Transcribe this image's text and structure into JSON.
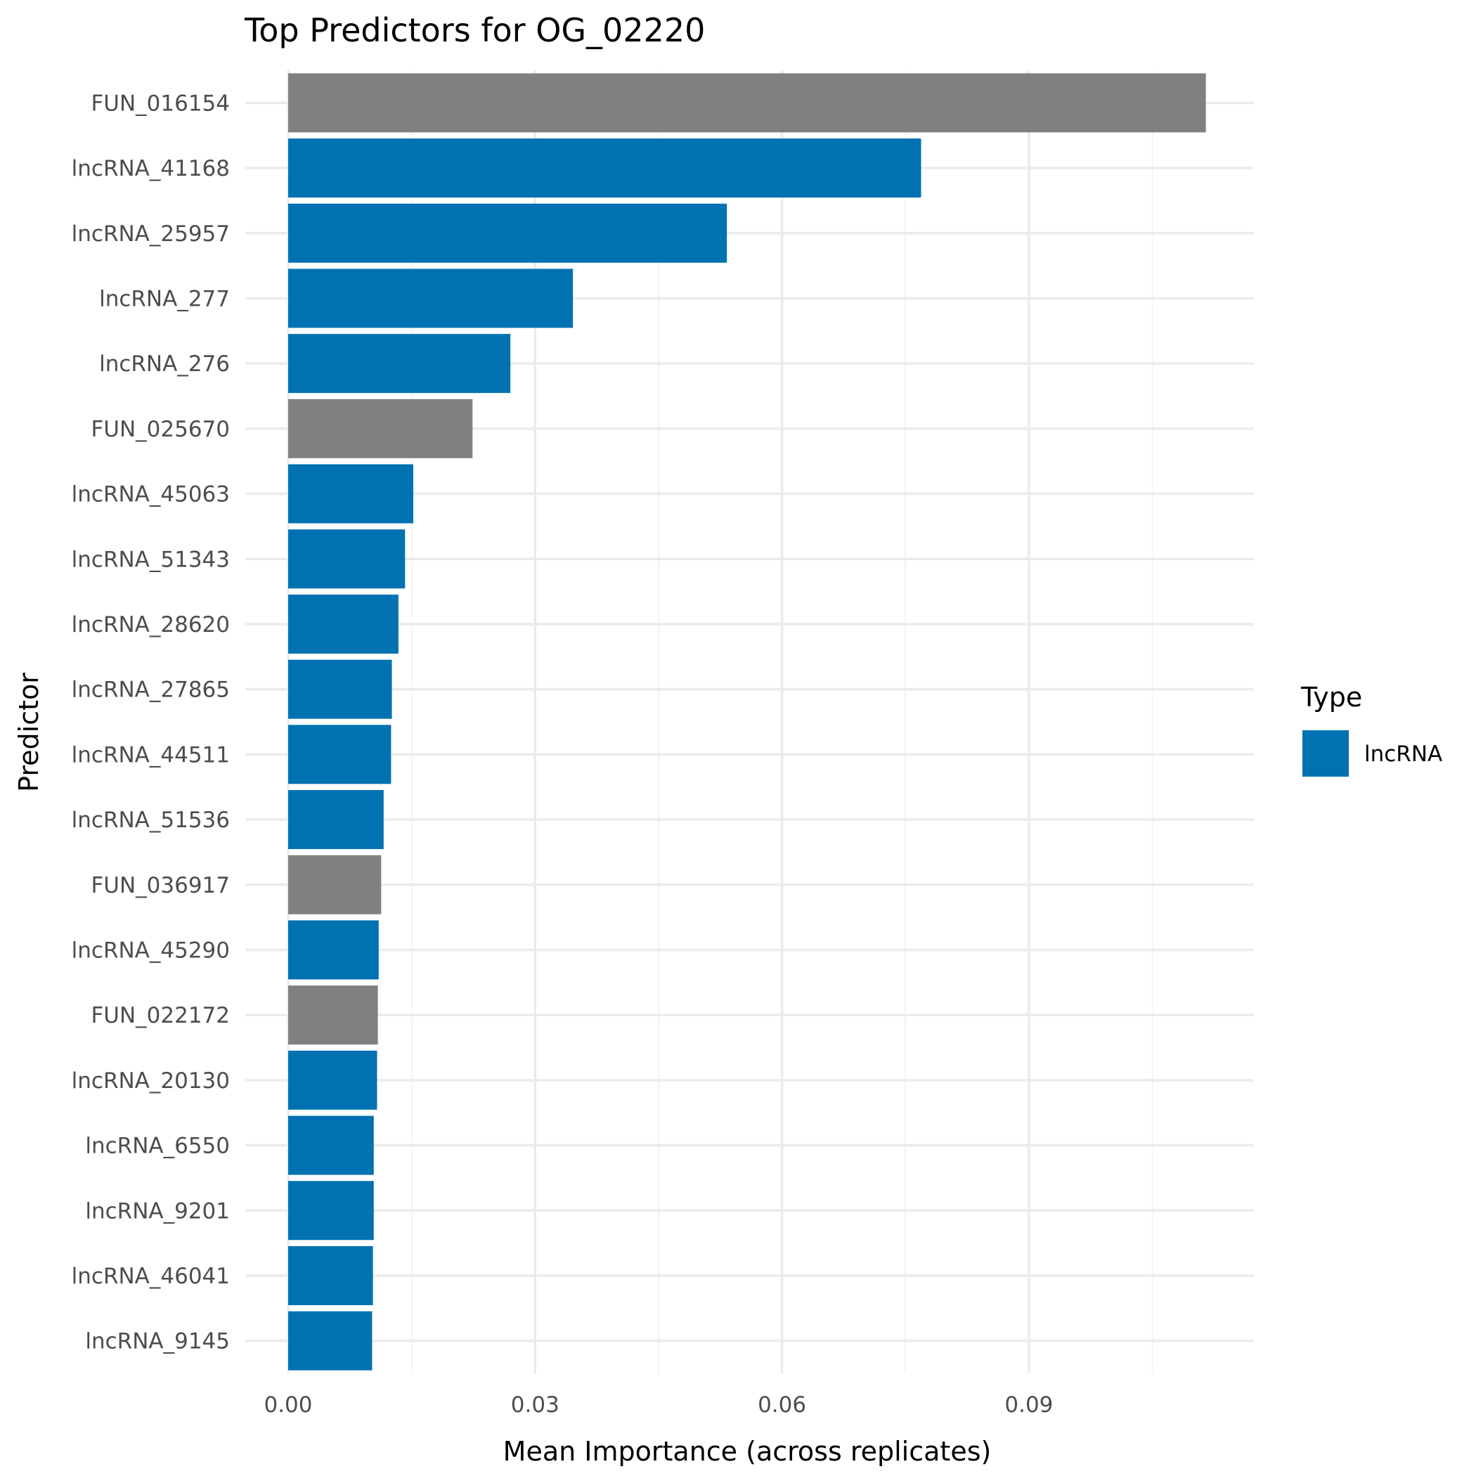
{
  "chart_data": {
    "type": "bar",
    "orientation": "horizontal",
    "title": "Top Predictors for OG_02220",
    "xlabel": "Mean Importance (across replicates)",
    "ylabel": "Predictor",
    "xlim": [
      0,
      0.1165
    ],
    "x_ticks": [
      0.0,
      0.03,
      0.06,
      0.09
    ],
    "x_tick_labels": [
      "0.00",
      "0.03",
      "0.06",
      "0.09"
    ],
    "grid": true,
    "categories": [
      "FUN_016154",
      "lncRNA_41168",
      "lncRNA_25957",
      "lncRNA_277",
      "lncRNA_276",
      "FUN_025670",
      "lncRNA_45063",
      "lncRNA_51343",
      "lncRNA_28620",
      "lncRNA_27865",
      "lncRNA_44511",
      "lncRNA_51536",
      "FUN_036917",
      "lncRNA_45290",
      "FUN_022172",
      "lncRNA_20130",
      "lncRNA_6550",
      "lncRNA_9201",
      "lncRNA_46041",
      "lncRNA_9145"
    ],
    "values": [
      0.1115,
      0.0769,
      0.0533,
      0.0346,
      0.027,
      0.0224,
      0.0152,
      0.0142,
      0.0134,
      0.0126,
      0.0125,
      0.0116,
      0.0113,
      0.011,
      0.0109,
      0.0108,
      0.0104,
      0.0104,
      0.0103,
      0.0102
    ],
    "types": [
      "FUN",
      "lncRNA",
      "lncRNA",
      "lncRNA",
      "lncRNA",
      "FUN",
      "lncRNA",
      "lncRNA",
      "lncRNA",
      "lncRNA",
      "lncRNA",
      "lncRNA",
      "FUN",
      "lncRNA",
      "FUN",
      "lncRNA",
      "lncRNA",
      "lncRNA",
      "lncRNA",
      "lncRNA"
    ],
    "colors": {
      "lncRNA": "#0072B2",
      "FUN": "#808080"
    },
    "legend": {
      "title": "Type",
      "placement": "right",
      "entries": [
        {
          "label": "lncRNA",
          "color": "#0072B2"
        }
      ]
    }
  }
}
